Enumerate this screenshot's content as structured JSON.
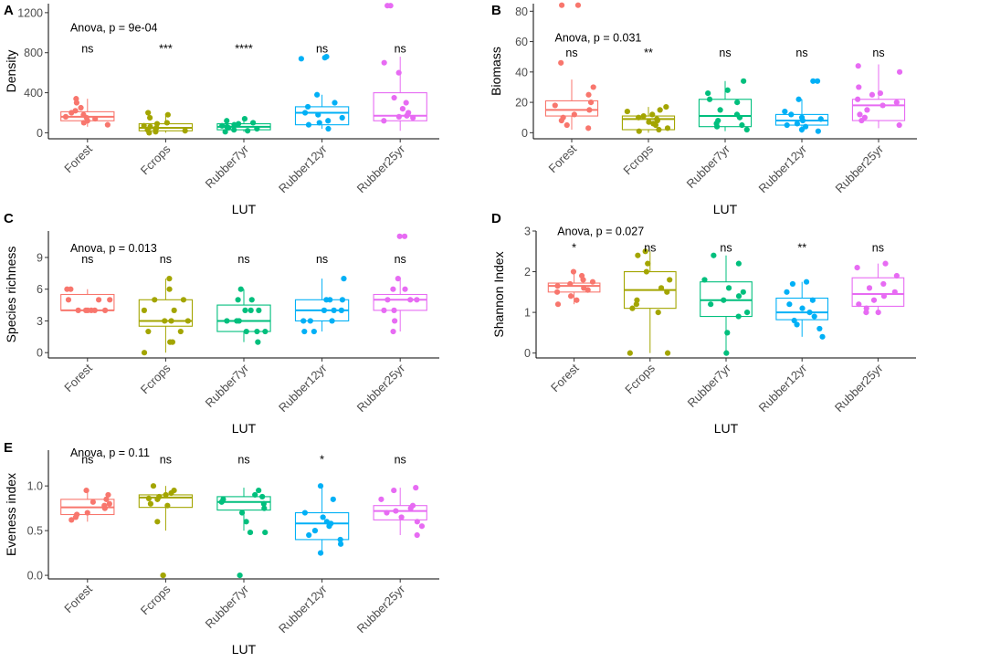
{
  "chart_data": [
    {
      "panel": "A",
      "type": "boxplot",
      "xlabel": "LUT",
      "ylabel": "Density",
      "categories": [
        "Forest",
        "Fcrops",
        "Rubber7yr",
        "Rubber12yr",
        "Rubber25yr"
      ],
      "colors": [
        "#F8766D",
        "#A3A500",
        "#00BF7D",
        "#00B0F6",
        "#E76BF3"
      ],
      "ylim": [
        -60,
        1290
      ],
      "yticks": [
        0,
        400,
        800,
        1200
      ],
      "anova": "Anova, p = 9e-04",
      "anova_y": 1010,
      "sig_y": 800,
      "signif": [
        "ns",
        "***",
        "****",
        "ns",
        "ns"
      ],
      "boxes": [
        {
          "q1": 120,
          "median": 160,
          "q3": 210,
          "whisker_low": 60,
          "whisker_high": 340
        },
        {
          "q1": 20,
          "median": 50,
          "q3": 90,
          "whisker_low": 0,
          "whisker_high": 190
        },
        {
          "q1": 30,
          "median": 60,
          "q3": 90,
          "whisker_low": 10,
          "whisker_high": 140
        },
        {
          "q1": 80,
          "median": 200,
          "q3": 260,
          "whisker_low": 40,
          "whisker_high": 380
        },
        {
          "q1": 120,
          "median": 170,
          "q3": 400,
          "whisker_low": 20,
          "whisker_high": 760
        }
      ],
      "points": [
        [
          200,
          150,
          250,
          180,
          300,
          100,
          120,
          80,
          340,
          220,
          160,
          140
        ],
        [
          20,
          50,
          100,
          180,
          200,
          10,
          40,
          70,
          150,
          30,
          90,
          60,
          0
        ],
        [
          20,
          60,
          100,
          140,
          70,
          40,
          90,
          120,
          50,
          30,
          10,
          80
        ],
        [
          40,
          80,
          200,
          380,
          100,
          260,
          150,
          300,
          120,
          740,
          750,
          760,
          180
        ],
        [
          120,
          160,
          200,
          600,
          700,
          1270,
          1270,
          240,
          300,
          150,
          350,
          170
        ]
      ]
    },
    {
      "panel": "B",
      "type": "boxplot",
      "xlabel": "LUT",
      "ylabel": "Biomass",
      "categories": [
        "Forest",
        "Fcrops",
        "Rubber7yr",
        "Rubber12yr",
        "Rubber25yr"
      ],
      "colors": [
        "#F8766D",
        "#A3A500",
        "#00BF7D",
        "#00B0F6",
        "#E76BF3"
      ],
      "ylim": [
        -4,
        85
      ],
      "yticks": [
        0,
        20,
        40,
        60,
        80
      ],
      "anova": "Anova, p = 0.031",
      "anova_y": 60,
      "sig_y": 50,
      "signif": [
        "ns",
        "**",
        "ns",
        "ns",
        "ns"
      ],
      "boxes": [
        {
          "q1": 11,
          "median": 15,
          "q3": 21,
          "whisker_low": 2,
          "whisker_high": 35
        },
        {
          "q1": 2,
          "median": 9,
          "q3": 11,
          "whisker_low": 0,
          "whisker_high": 17
        },
        {
          "q1": 4,
          "median": 11,
          "q3": 22,
          "whisker_low": 1,
          "whisker_high": 34
        },
        {
          "q1": 5,
          "median": 8,
          "q3": 12,
          "whisker_low": 0,
          "whisker_high": 22
        },
        {
          "q1": 8,
          "median": 18,
          "q3": 22,
          "whisker_low": 3,
          "whisker_high": 45
        }
      ],
      "points": [
        [
          84,
          84,
          46,
          15,
          20,
          10,
          5,
          25,
          12,
          30,
          8,
          18,
          3
        ],
        [
          2,
          5,
          8,
          10,
          12,
          15,
          17,
          9,
          6,
          3,
          11,
          1,
          7,
          14
        ],
        [
          5,
          12,
          20,
          28,
          26,
          34,
          10,
          6,
          4,
          15,
          22,
          2,
          8
        ],
        [
          2,
          5,
          8,
          12,
          22,
          34,
          34,
          10,
          6,
          14,
          4,
          1,
          9
        ],
        [
          5,
          10,
          18,
          22,
          30,
          44,
          40,
          15,
          25,
          8,
          20,
          12,
          26
        ]
      ]
    },
    {
      "panel": "C",
      "type": "boxplot",
      "xlabel": "LUT",
      "ylabel": "Species richness",
      "categories": [
        "Forest",
        "Fcrops",
        "Rubber7yr",
        "Rubber12yr",
        "Rubber25yr"
      ],
      "colors": [
        "#F8766D",
        "#A3A500",
        "#00BF7D",
        "#00B0F6",
        "#E76BF3"
      ],
      "ylim": [
        -0.5,
        11.5
      ],
      "yticks": [
        0,
        3,
        6,
        9
      ],
      "anova": "Anova, p = 0.013",
      "anova_y": 9.5,
      "sig_y": 8.5,
      "signif": [
        "ns",
        "ns",
        "ns",
        "ns",
        "ns"
      ],
      "boxes": [
        {
          "q1": 4,
          "median": 4,
          "q3": 5.5,
          "whisker_low": 4,
          "whisker_high": 6
        },
        {
          "q1": 2.5,
          "median": 3,
          "q3": 5,
          "whisker_low": 0,
          "whisker_high": 7
        },
        {
          "q1": 2,
          "median": 3,
          "q3": 4.5,
          "whisker_low": 1,
          "whisker_high": 6
        },
        {
          "q1": 3,
          "median": 4,
          "q3": 5,
          "whisker_low": 2,
          "whisker_high": 7
        },
        {
          "q1": 4,
          "median": 5,
          "q3": 5.5,
          "whisker_low": 2,
          "whisker_high": 7
        }
      ],
      "points": [
        [
          4,
          4,
          4,
          5,
          6,
          6,
          5,
          4,
          4,
          5,
          4
        ],
        [
          0,
          1,
          2,
          3,
          4,
          5,
          5,
          6,
          7,
          3,
          2,
          4,
          3,
          1
        ],
        [
          1,
          2,
          2,
          3,
          3,
          4,
          4,
          5,
          6,
          3,
          2,
          4,
          5
        ],
        [
          2,
          3,
          3,
          4,
          4,
          5,
          5,
          7,
          4,
          3,
          2,
          5
        ],
        [
          2,
          4,
          5,
          5,
          6,
          7,
          11,
          11,
          4,
          5,
          3,
          6
        ]
      ]
    },
    {
      "panel": "D",
      "type": "boxplot",
      "xlabel": "LUT",
      "ylabel": "Shannon Index",
      "categories": [
        "Forest",
        "Fcrops",
        "Rubber7yr",
        "Rubber12yr",
        "Rubber25yr"
      ],
      "colors": [
        "#F8766D",
        "#A3A500",
        "#00BF7D",
        "#00B0F6",
        "#E76BF3"
      ],
      "ylim": [
        -0.12,
        3.0
      ],
      "yticks": [
        0,
        1,
        2,
        3
      ],
      "anova": "Anova, p = 0.027",
      "anova_y": 2.9,
      "sig_y": 2.5,
      "signif": [
        "*",
        "ns",
        "ns",
        "**",
        "ns"
      ],
      "boxes": [
        {
          "q1": 1.5,
          "median": 1.65,
          "q3": 1.72,
          "whisker_low": 1.2,
          "whisker_high": 2.0
        },
        {
          "q1": 1.1,
          "median": 1.55,
          "q3": 2.0,
          "whisker_low": 0,
          "whisker_high": 2.5
        },
        {
          "q1": 0.9,
          "median": 1.3,
          "q3": 1.75,
          "whisker_low": 0,
          "whisker_high": 2.4
        },
        {
          "q1": 0.82,
          "median": 1.0,
          "q3": 1.35,
          "whisker_low": 0.4,
          "whisker_high": 1.75
        },
        {
          "q1": 1.15,
          "median": 1.45,
          "q3": 1.85,
          "whisker_low": 1.0,
          "whisker_high": 2.2
        }
      ],
      "points": [
        [
          1.2,
          1.5,
          1.6,
          1.7,
          1.8,
          2.0,
          1.4,
          1.65,
          1.75,
          1.3,
          1.9,
          1.55
        ],
        [
          0,
          0,
          1.0,
          1.3,
          1.5,
          1.8,
          2.0,
          2.2,
          2.5,
          1.6,
          1.2,
          2.4,
          1.1
        ],
        [
          0,
          0.5,
          0.9,
          1.2,
          1.4,
          1.6,
          1.8,
          2.2,
          2.4,
          1.0,
          1.5,
          1.3
        ],
        [
          0.4,
          0.6,
          0.8,
          1.0,
          1.1,
          1.3,
          1.5,
          1.7,
          1.75,
          0.9,
          1.2,
          0.7
        ],
        [
          1.0,
          1.0,
          1.2,
          1.4,
          1.5,
          1.7,
          1.9,
          2.1,
          2.2,
          1.3,
          1.6,
          1.1
        ]
      ]
    },
    {
      "panel": "E",
      "type": "boxplot",
      "xlabel": "LUT",
      "ylabel": "Eveness index",
      "categories": [
        "Forest",
        "Fcrops",
        "Rubber7yr",
        "Rubber12yr",
        "Rubber25yr"
      ],
      "colors": [
        "#F8766D",
        "#A3A500",
        "#00BF7D",
        "#00B0F6",
        "#E76BF3"
      ],
      "ylim": [
        -0.04,
        1.4
      ],
      "yticks": [
        0.0,
        0.5,
        1.0
      ],
      "ytick_labels": [
        "0.0",
        "0.5",
        "1.0"
      ],
      "anova": "Anova, p = 0.11",
      "anova_y": 1.33,
      "sig_y": 1.25,
      "signif": [
        "ns",
        "ns",
        "ns",
        "*",
        "ns"
      ],
      "boxes": [
        {
          "q1": 0.68,
          "median": 0.76,
          "q3": 0.85,
          "whisker_low": 0.6,
          "whisker_high": 0.96
        },
        {
          "q1": 0.76,
          "median": 0.87,
          "q3": 0.9,
          "whisker_low": 0.5,
          "whisker_high": 1.0
        },
        {
          "q1": 0.73,
          "median": 0.82,
          "q3": 0.88,
          "whisker_low": 0.5,
          "whisker_high": 0.98
        },
        {
          "q1": 0.4,
          "median": 0.58,
          "q3": 0.7,
          "whisker_low": 0.25,
          "whisker_high": 1.0
        },
        {
          "q1": 0.62,
          "median": 0.72,
          "q3": 0.78,
          "whisker_low": 0.45,
          "whisker_high": 0.98
        }
      ],
      "points": [
        [
          0.62,
          0.65,
          0.7,
          0.75,
          0.78,
          0.82,
          0.85,
          0.9,
          0.95,
          0.68,
          0.8
        ],
        [
          0,
          0,
          0.6,
          0.8,
          0.85,
          0.88,
          0.9,
          0.95,
          1.0,
          0.78,
          0.92,
          0.86
        ],
        [
          0,
          0.48,
          0.48,
          0.6,
          0.75,
          0.8,
          0.85,
          0.9,
          0.95,
          0.82,
          0.88,
          0.7
        ],
        [
          0.25,
          0.35,
          0.45,
          0.5,
          0.55,
          0.6,
          0.65,
          0.7,
          0.85,
          1.0,
          0.4,
          0.58
        ],
        [
          0.45,
          0.55,
          0.6,
          0.65,
          0.7,
          0.75,
          0.78,
          0.85,
          0.95,
          0.98,
          0.72
        ]
      ]
    }
  ]
}
